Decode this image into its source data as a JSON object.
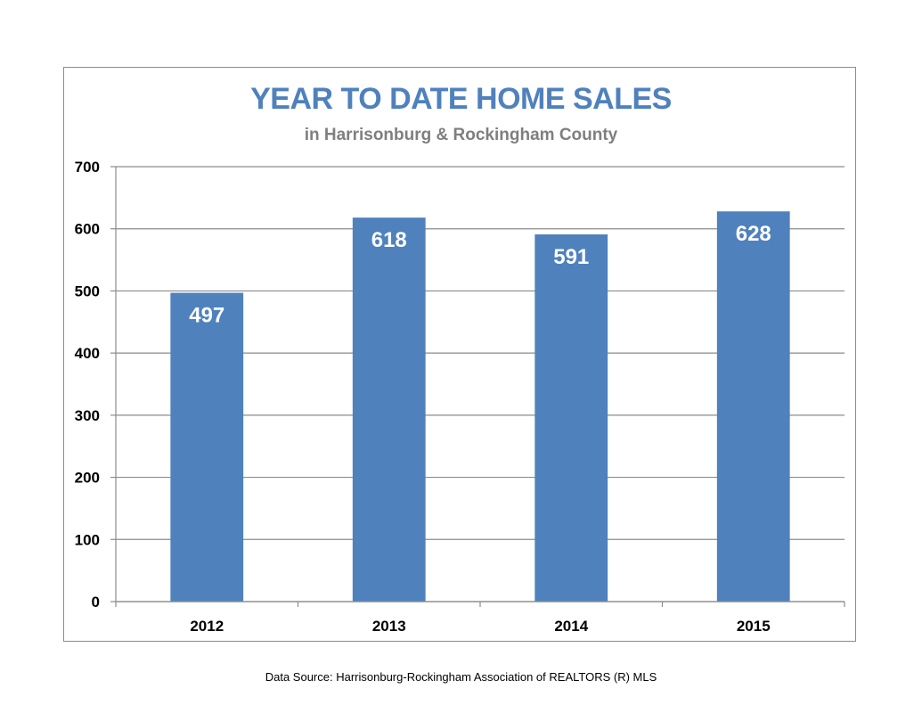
{
  "chart_data": {
    "type": "bar",
    "title": "YEAR TO DATE HOME SALES",
    "subtitle": "in Harrisonburg & Rockingham County",
    "categories": [
      "2012",
      "2013",
      "2014",
      "2015"
    ],
    "values": [
      497,
      618,
      591,
      628
    ],
    "data_labels": [
      "497",
      "618",
      "591",
      "628"
    ],
    "xlabel": "",
    "ylabel": "",
    "ylim": [
      0,
      700
    ],
    "yticks": [
      0,
      100,
      200,
      300,
      400,
      500,
      600,
      700
    ],
    "ytick_labels": [
      "0",
      "100",
      "200",
      "300",
      "400",
      "500",
      "600",
      "700"
    ],
    "grid": true,
    "legend": "none",
    "bar_color": "#4f81bd"
  },
  "footer": {
    "source": "Data Source: Harrisonburg-Rockingham Association of REALTORS (R) MLS"
  },
  "colors": {
    "title": "#4f81bd",
    "subtitle": "#7f7f7f",
    "gridline": "#8c8c8c",
    "data_label": "#ffffff"
  }
}
